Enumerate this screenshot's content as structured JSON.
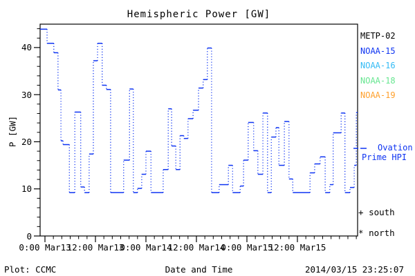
{
  "title": "Hemispheric Power [GW]",
  "y_axis": {
    "label": "P [GW]",
    "major_ticks": [
      "0",
      "10",
      "20",
      "30",
      "40"
    ],
    "minor_step_gw": 2,
    "range_gw": [
      0,
      45
    ]
  },
  "x_axis": {
    "label": "Date and Time",
    "ticks": [
      {
        "t": 0,
        "time": "0:00",
        "date": "Mar13"
      },
      {
        "t": 12,
        "time": "12:00",
        "date": "Mar13"
      },
      {
        "t": 24,
        "time": "0:00",
        "date": "Mar14"
      },
      {
        "t": 36,
        "time": "12:00",
        "date": "Mar14"
      },
      {
        "t": 48,
        "time": "0:00",
        "date": "Mar15"
      },
      {
        "t": 60,
        "time": "12:00",
        "date": "Mar15"
      }
    ],
    "minor_step_hours": 2,
    "range_hours": [
      -1.15,
      74.3
    ]
  },
  "legend": {
    "satellites": [
      {
        "label": "METP-02",
        "color": "#000000"
      },
      {
        "label": "NOAA-15",
        "color": "#0d33f2"
      },
      {
        "label": "NOAA-16",
        "color": "#33bbf5"
      },
      {
        "label": "NOAA-18",
        "color": "#66e690"
      },
      {
        "label": "NOAA-19",
        "color": "#ffa02c"
      }
    ],
    "line_sample_color": "#0d33f2",
    "ovation": {
      "line1": "Ovation",
      "line2": "Prime HPI"
    },
    "markers": [
      {
        "symbol": "+",
        "label": "south"
      },
      {
        "symbol": "*",
        "label": "north"
      }
    ]
  },
  "footer": {
    "left": "Plot: CCMC",
    "right": "2014/03/15 23:25:07"
  },
  "chart_data": {
    "type": "line",
    "subtype": "step-dotted",
    "title": "Hemispheric Power [GW]",
    "xlabel": "Date and Time",
    "ylabel": "P [GW]",
    "ylim": [
      0,
      45
    ],
    "xlim_hours_from_mar13_0000": [
      -1.15,
      74.3
    ],
    "grid": false,
    "legend_position": "right-outside",
    "series": [
      {
        "name": "Ovation Prime HPI",
        "color": "#0d33f2",
        "x_unit": "hours since 2014-03-13 00:00 UT",
        "y_unit": "GW",
        "steps": [
          [
            -1.2,
            43.9
          ],
          [
            0.5,
            40.9
          ],
          [
            2.1,
            38.9
          ],
          [
            3.1,
            31.0
          ],
          [
            3.8,
            20.2
          ],
          [
            4.3,
            19.4
          ],
          [
            5.8,
            9.2
          ],
          [
            7.1,
            26.3
          ],
          [
            8.5,
            10.4
          ],
          [
            9.4,
            9.2
          ],
          [
            10.5,
            17.4
          ],
          [
            11.5,
            37.2
          ],
          [
            12.5,
            40.9
          ],
          [
            13.6,
            32.0
          ],
          [
            14.6,
            31.1
          ],
          [
            15.6,
            9.2
          ],
          [
            18.7,
            16.1
          ],
          [
            20.1,
            31.2
          ],
          [
            21.0,
            9.2
          ],
          [
            22.0,
            10.1
          ],
          [
            23.0,
            13.1
          ],
          [
            24.0,
            18.0
          ],
          [
            25.2,
            9.2
          ],
          [
            28.1,
            14.1
          ],
          [
            29.3,
            27.0
          ],
          [
            30.1,
            19.1
          ],
          [
            31.1,
            14.1
          ],
          [
            32.1,
            21.3
          ],
          [
            33.0,
            20.7
          ],
          [
            34.0,
            24.9
          ],
          [
            35.2,
            26.7
          ],
          [
            36.5,
            31.4
          ],
          [
            37.6,
            33.2
          ],
          [
            38.6,
            39.9
          ],
          [
            39.6,
            9.2
          ],
          [
            41.4,
            10.9
          ],
          [
            43.6,
            15.0
          ],
          [
            44.6,
            9.2
          ],
          [
            46.4,
            10.6
          ],
          [
            47.2,
            16.1
          ],
          [
            48.3,
            24.1
          ],
          [
            49.6,
            18.1
          ],
          [
            50.6,
            13.1
          ],
          [
            51.8,
            26.1
          ],
          [
            52.9,
            9.2
          ],
          [
            53.8,
            21.0
          ],
          [
            54.9,
            23.0
          ],
          [
            55.6,
            15.0
          ],
          [
            56.9,
            24.3
          ],
          [
            58.0,
            12.1
          ],
          [
            58.9,
            9.2
          ],
          [
            63.0,
            13.4
          ],
          [
            64.1,
            15.3
          ],
          [
            65.4,
            16.8
          ],
          [
            66.6,
            9.2
          ],
          [
            67.7,
            10.9
          ],
          [
            68.5,
            21.9
          ],
          [
            70.4,
            26.1
          ],
          [
            71.3,
            9.2
          ],
          [
            72.5,
            10.3
          ],
          [
            73.5,
            15.0
          ],
          [
            74.0,
            26.2
          ]
        ],
        "t_end": 74.3
      }
    ]
  }
}
